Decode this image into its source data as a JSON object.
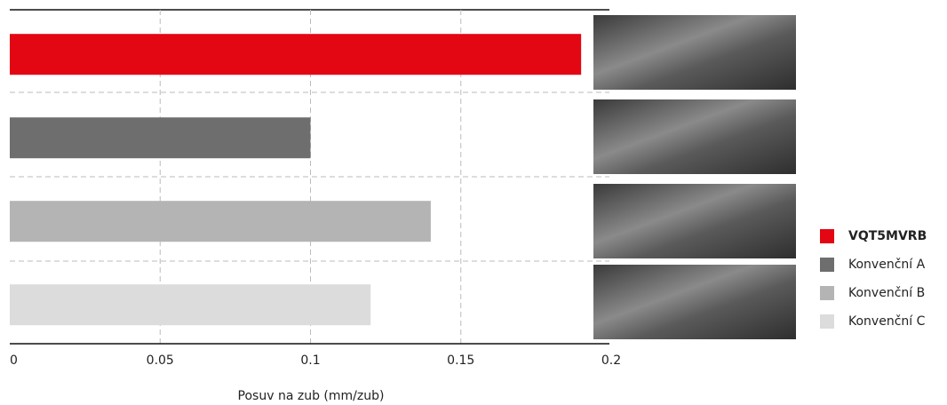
{
  "chart_data": {
    "type": "bar",
    "orientation": "horizontal",
    "x_label": "Posuv na zub (mm/zub)",
    "categories": [
      "VQT5MVRB",
      "Konvenční A",
      "Konvenční B",
      "Konvenční C"
    ],
    "values": [
      0.19,
      0.1,
      0.14,
      0.12
    ],
    "colors": [
      "#e30613",
      "#6e6e6e",
      "#b4b4b4",
      "#dcdcdc"
    ],
    "xlim": [
      0,
      0.2
    ],
    "xticks": [
      0,
      0.05,
      0.1,
      0.15,
      0.2
    ],
    "grid": true,
    "legend": "right"
  }
}
